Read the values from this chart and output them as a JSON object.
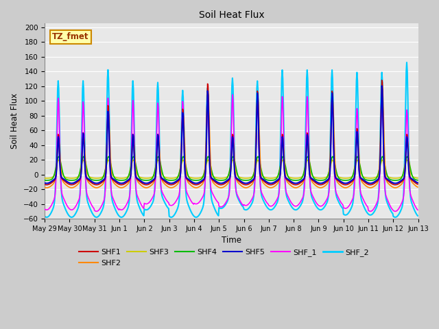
{
  "title": "Soil Heat Flux",
  "xlabel": "Time",
  "ylabel": "Soil Heat Flux",
  "ylim": [
    -60,
    205
  ],
  "yticks": [
    -60,
    -40,
    -20,
    0,
    20,
    40,
    60,
    80,
    100,
    120,
    140,
    160,
    180,
    200
  ],
  "xtick_labels": [
    "May 29",
    "May 30",
    "May 31",
    "Jun 1",
    "Jun 2",
    "Jun 3",
    "Jun 4",
    "Jun 5",
    "Jun 6",
    "Jun 7",
    "Jun 8",
    "Jun 9",
    "Jun 10",
    "Jun 11",
    "Jun 12",
    "Jun 13"
  ],
  "colors": {
    "SHF1": "#cc0000",
    "SHF2": "#ff8800",
    "SHF3": "#cccc00",
    "SHF4": "#00bb00",
    "SHF5": "#0000cc",
    "SHF_1": "#ff00ff",
    "SHF_2": "#00ccff"
  },
  "annotation_text": "TZ_fmet",
  "annotation_fgcolor": "#993300",
  "annotation_bgcolor": "#ffffaa",
  "annotation_edgecolor": "#cc8800",
  "fig_facecolor": "#cccccc",
  "ax_facecolor": "#e8e8e8",
  "grid_color": "#ffffff",
  "n_days": 15,
  "figsize": [
    6.4,
    4.8
  ],
  "dpi": 100
}
